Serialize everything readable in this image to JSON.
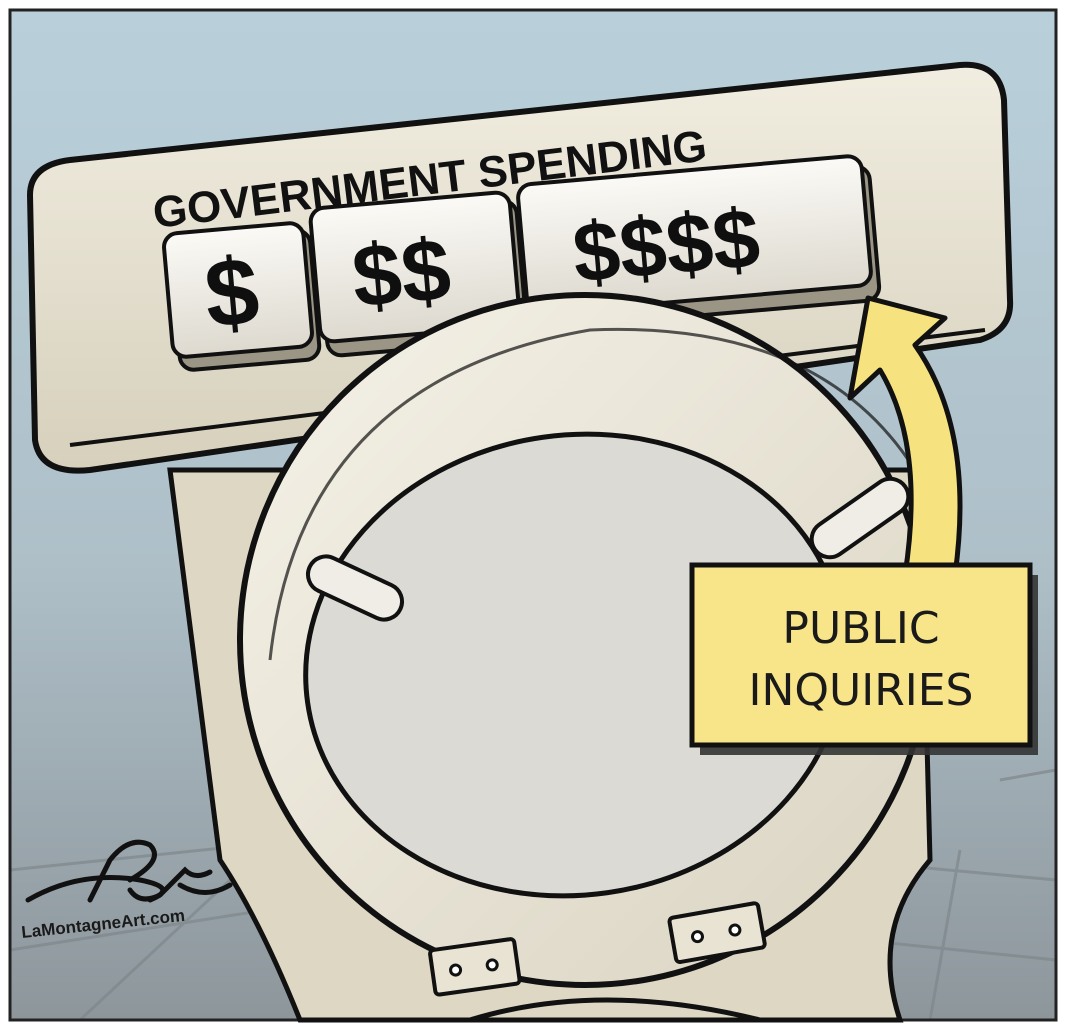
{
  "cartoon": {
    "tank_label": "GOVERNMENT SPENDING",
    "buttons": [
      {
        "label": "$"
      },
      {
        "label": "$$"
      },
      {
        "label": "$$$$"
      }
    ],
    "callout": {
      "line1": "PUBLIC",
      "line2": "INQUIRIES"
    },
    "credit": "LaMontagneArt.com"
  },
  "colors": {
    "sky": "#b9cfda",
    "porcelain": "#e8e3d3",
    "porcelain_shadow": "#c9c2ac",
    "callout_fill": "#f8e589",
    "arrow_fill": "#f6e27e",
    "ink": "#111111"
  }
}
